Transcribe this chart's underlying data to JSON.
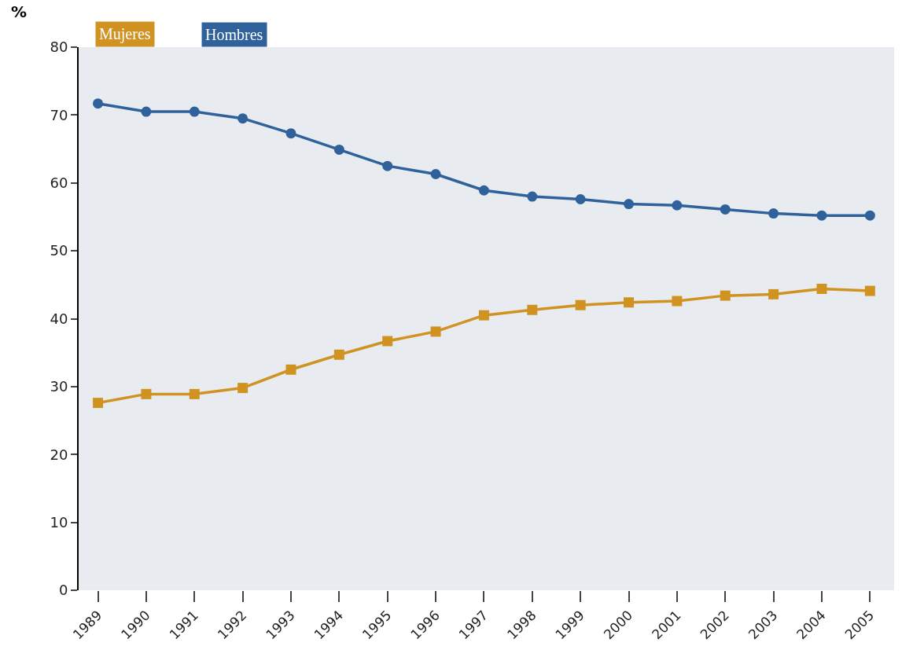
{
  "chart_data": {
    "type": "line",
    "ylabel": "%",
    "categories": [
      "1989",
      "1990",
      "1991",
      "1992",
      "1993",
      "1994",
      "1995",
      "1996",
      "1997",
      "1998",
      "1999",
      "2000",
      "2001",
      "2002",
      "2003",
      "2004",
      "2005"
    ],
    "series": [
      {
        "name": "Mujeres",
        "color": "#d09322",
        "marker": "square",
        "values": [
          27.6,
          28.9,
          28.9,
          29.8,
          32.5,
          34.7,
          36.7,
          38.1,
          40.5,
          41.3,
          42.0,
          42.4,
          42.6,
          43.4,
          43.6,
          44.4,
          44.1
        ]
      },
      {
        "name": "Hombres",
        "color": "#2f619b",
        "marker": "circle",
        "values": [
          71.7,
          70.5,
          70.5,
          69.5,
          67.3,
          64.9,
          62.5,
          61.3,
          58.9,
          58.0,
          57.6,
          56.9,
          56.7,
          56.1,
          55.5,
          55.2,
          55.2
        ]
      }
    ],
    "ylim": [
      0,
      80
    ],
    "yticks": [
      0,
      10,
      20,
      30,
      40,
      50,
      60,
      70,
      80
    ],
    "grid": false,
    "legend": "top left",
    "line_style": "solid"
  }
}
